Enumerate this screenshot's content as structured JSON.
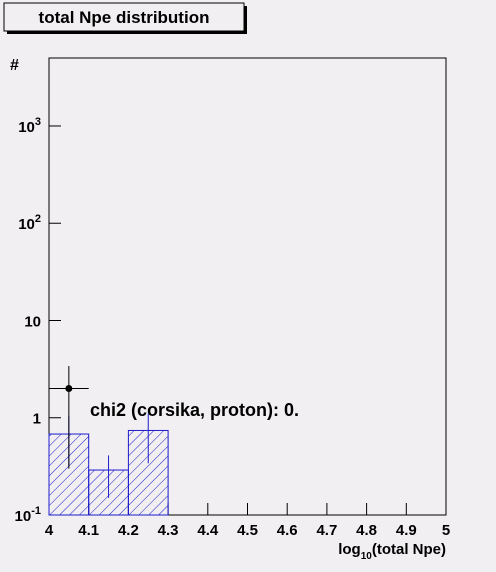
{
  "chart_data": {
    "type": "histogram",
    "title": "total Npe distribution",
    "ylabel": "#",
    "xlabel": {
      "main": "log",
      "sub": "10",
      "rest": "(total Npe)"
    },
    "annotation": "chi2 (corsika, proton): 0.",
    "log_y": true,
    "xlim": [
      4,
      5
    ],
    "xticks": [
      4,
      {
        "value": 4.1,
        "label": "4.1"
      },
      {
        "value": 4.2,
        "label": "4.2"
      },
      {
        "value": 4.3,
        "label": "4.3"
      },
      {
        "value": 4.4,
        "label": "4.4"
      },
      {
        "value": 4.5,
        "label": "4.5"
      },
      {
        "value": 4.6,
        "label": "4.6"
      },
      {
        "value": 4.7,
        "label": "4.7"
      },
      {
        "value": 4.8,
        "label": "4.8"
      },
      {
        "value": 4.9,
        "label": "4.9"
      },
      5
    ],
    "ylim": [
      0.1,
      5000
    ],
    "yticks": [
      {
        "value": 0.1,
        "label": "10",
        "exponent": "-1"
      },
      1,
      10,
      {
        "value": 100,
        "label": "10",
        "exponent": "2"
      },
      {
        "value": 1000,
        "label": "10",
        "exponent": "3"
      }
    ],
    "histogram": {
      "color": "#1c1ccc",
      "bins": [
        4,
        4.1,
        4.2,
        4.3
      ],
      "values": [
        0.68,
        0.29,
        0.74
      ],
      "error_low": [
        0.32,
        0.15,
        0.34
      ],
      "error_high": [
        1.04,
        0.41,
        1.1
      ]
    },
    "points": {
      "color": "#000000",
      "x": [
        4.05
      ],
      "x_low": [
        4.0
      ],
      "x_high": [
        4.1
      ],
      "values": [
        2
      ],
      "error_low": [
        0.3
      ],
      "error_high": [
        3.4
      ]
    }
  }
}
